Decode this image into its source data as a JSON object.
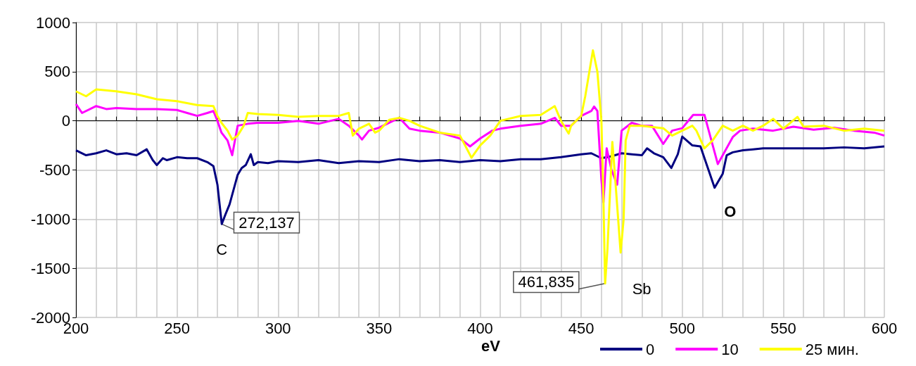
{
  "chart_data": {
    "type": "line",
    "xlabel": "eV",
    "xlim": [
      200,
      600
    ],
    "xticks": [
      200,
      250,
      300,
      350,
      400,
      450,
      500,
      550,
      600
    ],
    "ylim": [
      -2000,
      1000
    ],
    "yticks": [
      -2000,
      -1500,
      -1000,
      -500,
      0,
      500,
      1000
    ],
    "grid": true,
    "legend": "bottom",
    "marker": "none",
    "line_style": "solid",
    "annotations": [
      {
        "text": "272,137",
        "x": 272.137,
        "y": -1050
      },
      {
        "text": "461,835",
        "x": 461.835,
        "y": -1655
      },
      {
        "text": "C",
        "x": 272.137,
        "y": -1050
      },
      {
        "text": "Sb",
        "x": 461.835,
        "y": -1655
      },
      {
        "text": "O",
        "x": 516,
        "y": -680
      }
    ],
    "series": [
      {
        "name": "0",
        "color": "#000080",
        "x": [
          200,
          205,
          210,
          215,
          220,
          225,
          230,
          235,
          238,
          240,
          243,
          245,
          250,
          255,
          260,
          265,
          268,
          270,
          272.137,
          274,
          276,
          278,
          280,
          282,
          284,
          286.5,
          288,
          290,
          295,
          300,
          310,
          320,
          330,
          340,
          350,
          360,
          370,
          380,
          390,
          400,
          410,
          420,
          430,
          440,
          450,
          455,
          460,
          465,
          470,
          475,
          480,
          482.6,
          486,
          490.6,
          494.6,
          497.8,
          500,
          505,
          509,
          513,
          516,
          520,
          522,
          525,
          530,
          535,
          540,
          550,
          560,
          570,
          580,
          590,
          600
        ],
        "values": [
          -300,
          -350,
          -330,
          -300,
          -340,
          -330,
          -350,
          -290,
          -400,
          -450,
          -380,
          -400,
          -370,
          -380,
          -380,
          -420,
          -460,
          -650,
          -1050,
          -950,
          -850,
          -700,
          -550,
          -480,
          -450,
          -340,
          -450,
          -420,
          -430,
          -410,
          -420,
          -400,
          -430,
          -410,
          -420,
          -390,
          -410,
          -400,
          -420,
          -400,
          -410,
          -390,
          -390,
          -370,
          -340,
          -330,
          -380,
          -360,
          -330,
          -340,
          -350,
          -280,
          -330,
          -370,
          -480,
          -340,
          -160,
          -250,
          -260,
          -500,
          -680,
          -540,
          -350,
          -320,
          -300,
          -290,
          -280,
          -280,
          -280,
          -280,
          -270,
          -280,
          -260
        ]
      },
      {
        "name": "10",
        "color": "#ff00ff",
        "x": [
          200,
          203,
          210,
          215,
          220,
          230,
          240,
          250,
          255,
          260,
          265,
          268,
          270,
          272,
          275,
          277.3,
          280,
          285,
          290,
          300,
          310,
          320,
          330,
          335,
          340,
          341.5,
          345,
          350,
          355,
          360,
          365,
          370,
          380,
          390,
          395,
          400,
          406,
          410,
          420,
          430,
          437,
          440,
          445,
          450,
          455,
          456.4,
          458,
          460,
          461,
          462.6,
          465,
          467.8,
          470,
          475,
          480,
          485,
          490.6,
          495,
          500,
          505.4,
          511,
          517.6,
          525,
          528.6,
          535,
          545,
          555,
          565,
          575,
          585,
          595,
          600
        ],
        "values": [
          170,
          80,
          150,
          120,
          130,
          120,
          120,
          110,
          80,
          50,
          80,
          100,
          0,
          -120,
          -200,
          -350,
          -50,
          -30,
          -20,
          -20,
          0,
          -30,
          20,
          -50,
          -150,
          -190,
          -100,
          -70,
          -20,
          30,
          -80,
          -100,
          -120,
          -180,
          -260,
          -180,
          -100,
          -80,
          -50,
          -30,
          30,
          -50,
          -50,
          50,
          100,
          145,
          100,
          -600,
          -830,
          -280,
          -500,
          -650,
          -100,
          -20,
          -50,
          -50,
          -235,
          -100,
          -75,
          60,
          60,
          -440,
          -165,
          -100,
          -80,
          -100,
          -60,
          -90,
          -70,
          -100,
          -120,
          -150
        ]
      },
      {
        "name": "25 мин.",
        "color": "#ffff00",
        "x": [
          200,
          205,
          210,
          220,
          230,
          240,
          250,
          260,
          268,
          270,
          272,
          275,
          277.3,
          280,
          283,
          285,
          290,
          300,
          310,
          320,
          330,
          335,
          337,
          340,
          345,
          348,
          350,
          355,
          360,
          365,
          370,
          380,
          390,
          395.7,
          400,
          405,
          410,
          420,
          430,
          436.9,
          440,
          443.8,
          445,
          450,
          452,
          455.8,
          458,
          460,
          461,
          461.835,
          463,
          465.4,
          466.5,
          469.5,
          471,
          472,
          474,
          480,
          490.6,
          495,
          500,
          505,
          507,
          511,
          515,
          520,
          525,
          530,
          535,
          540,
          545,
          550,
          557,
          560,
          570,
          580,
          590,
          600
        ],
        "values": [
          300,
          250,
          320,
          300,
          270,
          220,
          200,
          160,
          150,
          50,
          -20,
          -100,
          -190,
          -150,
          -50,
          80,
          70,
          60,
          40,
          50,
          50,
          80,
          -150,
          -80,
          -30,
          -120,
          -100,
          10,
          30,
          0,
          -50,
          -120,
          -150,
          -375,
          -250,
          -150,
          0,
          50,
          60,
          150,
          0,
          -130,
          -50,
          50,
          250,
          717,
          500,
          0,
          -800,
          -1655,
          -1300,
          -215,
          -500,
          -1340,
          -1000,
          -200,
          -50,
          -50,
          -75,
          -150,
          -100,
          -50,
          -100,
          -280,
          -200,
          -50,
          -100,
          -50,
          -100,
          -50,
          20,
          -80,
          40,
          -60,
          -50,
          -100,
          -80,
          -100
        ]
      }
    ]
  }
}
